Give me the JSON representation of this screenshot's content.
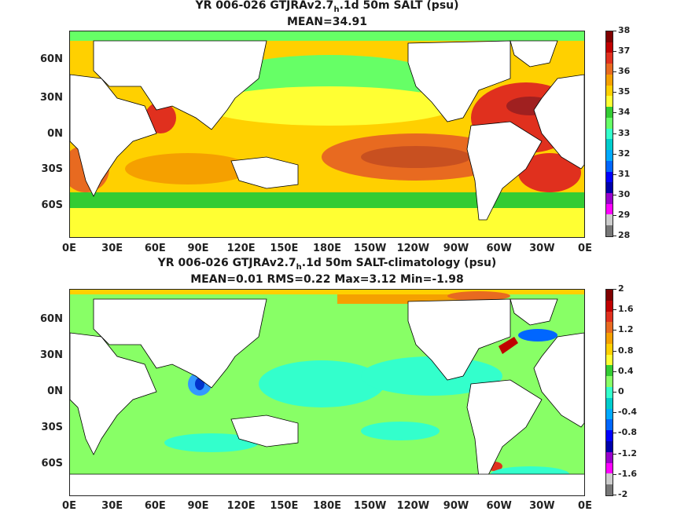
{
  "chart_data": [
    {
      "type": "heatmap",
      "title_line1_a": "YR 006-026 GTJRAv2.7",
      "title_line1_sub": "h",
      "title_line1_b": ".1d 50m SALT (psu)",
      "title_line2": "MEAN=34.91",
      "x_tick_labels": [
        "0E",
        "30E",
        "60E",
        "90E",
        "120E",
        "150E",
        "180E",
        "150W",
        "120W",
        "90W",
        "60W",
        "30W",
        "0E"
      ],
      "y_tick_labels": [
        "60N",
        "30N",
        "0N",
        "30S",
        "60S"
      ],
      "colorbar_labels": [
        "38",
        "37",
        "36",
        "35",
        "34",
        "33",
        "32",
        "31",
        "30",
        "29",
        "28"
      ],
      "colorbar_colors": [
        "#800000",
        "#c00000",
        "#e0301e",
        "#e86a20",
        "#f5a000",
        "#ffd000",
        "#ffff33",
        "#33cc33",
        "#66ff66",
        "#33ffcc",
        "#00cccc",
        "#00aaff",
        "#0066ff",
        "#0000ff",
        "#0000aa",
        "#9900cc",
        "#ff00ff",
        "#cccccc",
        "#777777"
      ],
      "mean": 34.91
    },
    {
      "type": "heatmap",
      "title_line1_a": "YR 006-026 GTJRAv2.7",
      "title_line1_sub": "h",
      "title_line1_b": ".1d 50m SALT-climatology (psu)",
      "title_line2": "MEAN=0.01   RMS=0.22   Max=3.12   Min=-1.98",
      "x_tick_labels": [
        "0E",
        "30E",
        "60E",
        "90E",
        "120E",
        "150E",
        "180E",
        "150W",
        "120W",
        "90W",
        "60W",
        "30W",
        "0E"
      ],
      "y_tick_labels": [
        "60N",
        "30N",
        "0N",
        "30S",
        "60S"
      ],
      "colorbar_labels": [
        "2",
        "1.6",
        "1.2",
        "0.8",
        "0.4",
        "0",
        "-0.4",
        "-0.8",
        "-1.2",
        "-1.6",
        "-2"
      ],
      "colorbar_colors": [
        "#800000",
        "#c00000",
        "#e0301e",
        "#e86a20",
        "#f5a000",
        "#ffd000",
        "#ffff33",
        "#33cc33",
        "#88ff66",
        "#33ffcc",
        "#00cccc",
        "#00aaff",
        "#0066ff",
        "#0000ff",
        "#0000aa",
        "#9900cc",
        "#ff00ff",
        "#cccccc",
        "#777777"
      ],
      "mean": 0.01,
      "rms": 0.22,
      "max": 3.12,
      "min": -1.98
    }
  ]
}
